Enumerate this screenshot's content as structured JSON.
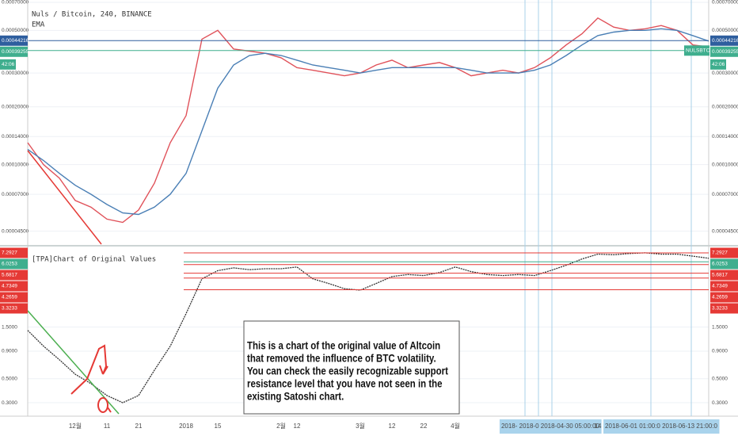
{
  "chart_data": [
    {
      "type": "line",
      "title": "Nuls / Bitcoin, 240, BINANCE",
      "subtitle": "EMA",
      "log_scale": true,
      "grid": true,
      "ylim": [
        3.85e-05,
        0.00072
      ],
      "yticks": [
        {
          "value": 0.0007,
          "label": "0.00070000"
        },
        {
          "value": 0.0005,
          "label": "0.00050000"
        },
        {
          "value": 0.0003,
          "label": "0.00030000"
        },
        {
          "value": 0.0002,
          "label": "0.00020000"
        },
        {
          "value": 0.00014,
          "label": "0.00014000"
        },
        {
          "value": 0.0001,
          "label": "0.00010000"
        },
        {
          "value": 7e-05,
          "label": "0.00007000"
        },
        {
          "value": 4.5e-05,
          "label": "0.00004500"
        }
      ],
      "series": [
        {
          "color": "#e0525a",
          "values": [
            0.00013,
            0.0001,
            8.5e-05,
            6.5e-05,
            6e-05,
            5.2e-05,
            5e-05,
            5.8e-05,
            8e-05,
            0.00013,
            0.00018,
            0.00045,
            0.0005,
            0.0004,
            0.00039,
            0.00038,
            0.00036,
            0.00032,
            0.00031,
            0.0003,
            0.00029,
            0.0003,
            0.00033,
            0.00035,
            0.00032,
            0.00033,
            0.00034,
            0.00032,
            0.00029,
            0.0003,
            0.00031,
            0.0003,
            0.00032,
            0.00036,
            0.00042,
            0.00048,
            0.00058,
            0.00052,
            0.0005,
            0.00051,
            0.00053,
            0.0005,
            0.00042,
            0.00041
          ]
        },
        {
          "name": "EMA",
          "color": "#4a7fb5",
          "values": [
            0.00012,
            0.000105,
            9e-05,
            7.8e-05,
            7e-05,
            6.2e-05,
            5.6e-05,
            5.5e-05,
            6e-05,
            7e-05,
            9e-05,
            0.00015,
            0.00025,
            0.00033,
            0.00037,
            0.00038,
            0.00037,
            0.00035,
            0.00033,
            0.00032,
            0.00031,
            0.0003,
            0.00031,
            0.00032,
            0.00032,
            0.00032,
            0.00032,
            0.00032,
            0.00031,
            0.0003,
            0.0003,
            0.0003,
            0.00031,
            0.00033,
            0.00037,
            0.00042,
            0.00047,
            0.00049,
            0.0005,
            0.0005,
            0.00051,
            0.0005,
            0.00047,
            0.00044
          ]
        }
      ],
      "badges": [
        {
          "value": 0.00044216,
          "color": "#2e5e9e"
        },
        {
          "value": 0.00039255,
          "color": "#3fae8e"
        }
      ],
      "symbol": "NULSBTC",
      "countdown": "42:06"
    },
    {
      "type": "line",
      "title": "[TPA]Chart of Original Values",
      "log_scale": true,
      "ylim": [
        0.237,
        8.07
      ],
      "yticks": [
        {
          "value": 1.5,
          "label": "1.5000"
        },
        {
          "value": 0.9,
          "label": "0.9000"
        },
        {
          "value": 0.5,
          "label": "0.5000"
        },
        {
          "value": 0.3,
          "label": "0.3000"
        }
      ],
      "categories": [
        null,
        null,
        null,
        "12월",
        null,
        "11",
        null,
        "21",
        null,
        null,
        "2018",
        null,
        "15",
        null,
        null,
        null,
        "2월",
        "12",
        null,
        null,
        null,
        "3월",
        null,
        "12",
        null,
        "22",
        null,
        "4월",
        null,
        null,
        null,
        null,
        null,
        "2018- 2018-0 2018-04-30 05:00:00",
        null,
        null,
        "14",
        null,
        null,
        null,
        "2018-06-01 01:00:0 2018-06-13 21:00:0",
        null,
        null,
        null
      ],
      "series": [
        {
          "color": "#333333",
          "values": [
            1.4,
            1.0,
            0.75,
            0.55,
            0.45,
            0.35,
            0.3,
            0.35,
            0.6,
            1.0,
            2.0,
            4.2,
            5.0,
            5.3,
            5.1,
            5.2,
            5.2,
            5.4,
            4.2,
            3.8,
            3.4,
            3.3,
            3.8,
            4.4,
            4.6,
            4.5,
            4.8,
            5.4,
            4.9,
            4.6,
            4.5,
            4.6,
            4.5,
            5.0,
            5.6,
            6.4,
            7.1,
            7.0,
            7.2,
            7.3,
            7.1,
            7.1,
            6.8,
            6.5
          ]
        }
      ],
      "badges": [
        {
          "value": 7.2927,
          "color": "#e53935"
        },
        {
          "value": 6.0253,
          "color": "#3fae8e"
        },
        {
          "value": 5.6817,
          "color": "#e53935"
        },
        {
          "value": 4.7349,
          "color": "#e53935"
        },
        {
          "value": 4.2659,
          "color": "#e53935"
        },
        {
          "value": 3.3233,
          "color": "#e53935"
        }
      ],
      "annotation": [
        "This is a chart of the original value of Altcoin",
        "that removed the influence of BTC volatility.",
        "You can check the easily recognizable support",
        " resistance level that you have not seen in the",
        "existing Satoshi chart."
      ]
    }
  ]
}
